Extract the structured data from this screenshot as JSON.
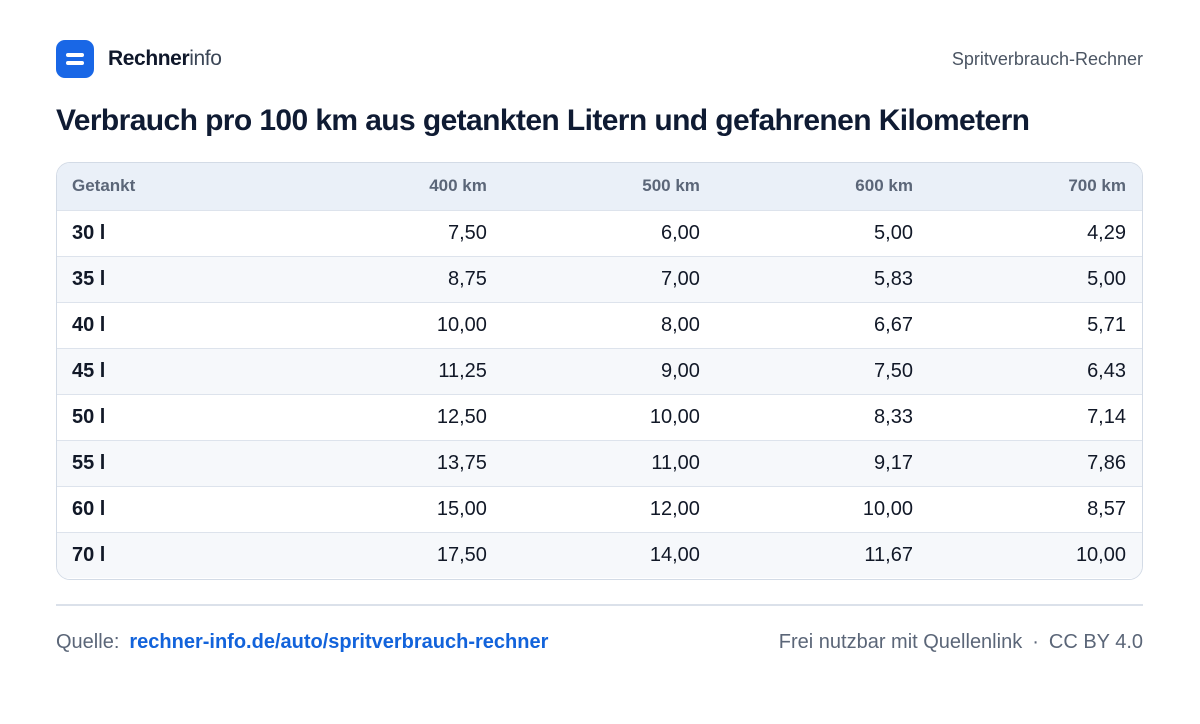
{
  "header": {
    "brand_strong": "Rechner",
    "brand_light": "info",
    "page_label": "Spritverbrauch-Rechner",
    "logo_icon": "equals-icon",
    "accent_color": "#1967e6"
  },
  "title": "Verbrauch pro 100 km aus getankten Litern und gefahrenen Kilometern",
  "table": {
    "headers": [
      "Getankt",
      "400 km",
      "500 km",
      "600 km",
      "700 km"
    ],
    "rows": [
      [
        "30 l",
        "7,50",
        "6,00",
        "5,00",
        "4,29"
      ],
      [
        "35 l",
        "8,75",
        "7,00",
        "5,83",
        "5,00"
      ],
      [
        "40 l",
        "10,00",
        "8,00",
        "6,67",
        "5,71"
      ],
      [
        "45 l",
        "11,25",
        "9,00",
        "7,50",
        "6,43"
      ],
      [
        "50 l",
        "12,50",
        "10,00",
        "8,33",
        "7,14"
      ],
      [
        "55 l",
        "13,75",
        "11,00",
        "9,17",
        "7,86"
      ],
      [
        "60 l",
        "15,00",
        "12,00",
        "10,00",
        "8,57"
      ],
      [
        "70 l",
        "17,50",
        "14,00",
        "11,67",
        "10,00"
      ]
    ]
  },
  "footer": {
    "source_label": "Quelle:",
    "source_link": "rechner-info.de/auto/spritverbrauch-rechner",
    "license_text": "Frei nutzbar mit Quellenlink",
    "separator": "·",
    "license_name": "CC BY 4.0",
    "link_color": "#1263db"
  }
}
